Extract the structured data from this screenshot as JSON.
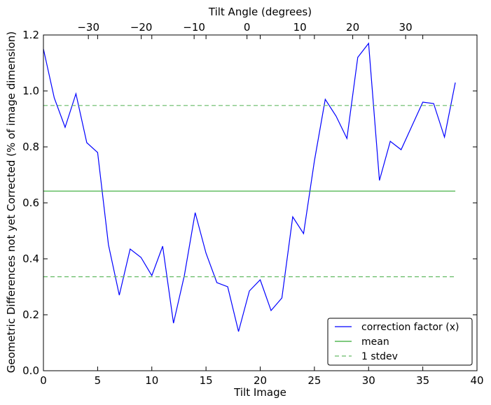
{
  "chart_data": {
    "type": "line",
    "xlabel": "Tilt Image",
    "ylabel": "Geometric Differences not yet Corrected (% of image dimension)",
    "top_xlabel": "Tilt Angle (degrees)",
    "xlim": [
      0,
      40
    ],
    "ylim": [
      0,
      1.2
    ],
    "x_ticks": [
      0,
      5,
      10,
      15,
      20,
      25,
      30,
      35,
      40
    ],
    "x_tick_labels": [
      "0",
      "5",
      "10",
      "15",
      "20",
      "25",
      "30",
      "35",
      "40"
    ],
    "y_ticks": [
      0,
      0.2,
      0.4,
      0.6,
      0.8,
      1.0,
      1.2
    ],
    "y_tick_labels": [
      "0.0",
      "0.2",
      "0.4",
      "0.6",
      "0.8",
      "1.0",
      "1.2"
    ],
    "top_ticks": [
      -30,
      -20,
      -10,
      0,
      10,
      20,
      30
    ],
    "top_tick_labels": [
      "−30",
      "−20",
      "−10",
      "0",
      "10",
      "20",
      "30"
    ],
    "top_axis_map": {
      "angle_at_image_0": -38.5,
      "degrees_per_image": 2.05
    },
    "grid": false,
    "legend_position": "lower-right",
    "series": [
      {
        "name": "correction factor (x)",
        "color": "#0000ff",
        "style": "solid",
        "x": [
          0,
          1,
          2,
          3,
          4,
          5,
          6,
          7,
          8,
          9,
          10,
          11,
          12,
          13,
          14,
          15,
          16,
          17,
          18,
          19,
          20,
          21,
          22,
          23,
          24,
          25,
          26,
          27,
          28,
          29,
          30,
          31,
          32,
          33,
          34,
          35,
          36,
          37,
          38
        ],
        "values": [
          1.15,
          0.975,
          0.87,
          0.99,
          0.815,
          0.78,
          0.45,
          0.27,
          0.435,
          0.405,
          0.34,
          0.445,
          0.17,
          0.34,
          0.565,
          0.42,
          0.315,
          0.3,
          0.14,
          0.285,
          0.325,
          0.215,
          0.26,
          0.55,
          0.49,
          0.75,
          0.97,
          0.91,
          0.83,
          1.12,
          1.17,
          0.68,
          0.82,
          0.79,
          0.875,
          0.96,
          0.955,
          0.835,
          1.03
        ]
      },
      {
        "name": "mean",
        "color": "#33aa33",
        "style": "solid",
        "x": [
          0,
          38
        ],
        "values": [
          0.642,
          0.642
        ]
      },
      {
        "name": "1 stdev",
        "color": "#66bb66",
        "style": "dashed",
        "x": [
          0,
          38
        ],
        "values": [
          0.948,
          0.948
        ]
      },
      {
        "name": "",
        "color": "#66bb66",
        "style": "dashed",
        "x": [
          0,
          38
        ],
        "values": [
          0.336,
          0.336
        ]
      }
    ],
    "legend": [
      "correction factor (x)",
      "mean",
      "1 stdev"
    ]
  }
}
